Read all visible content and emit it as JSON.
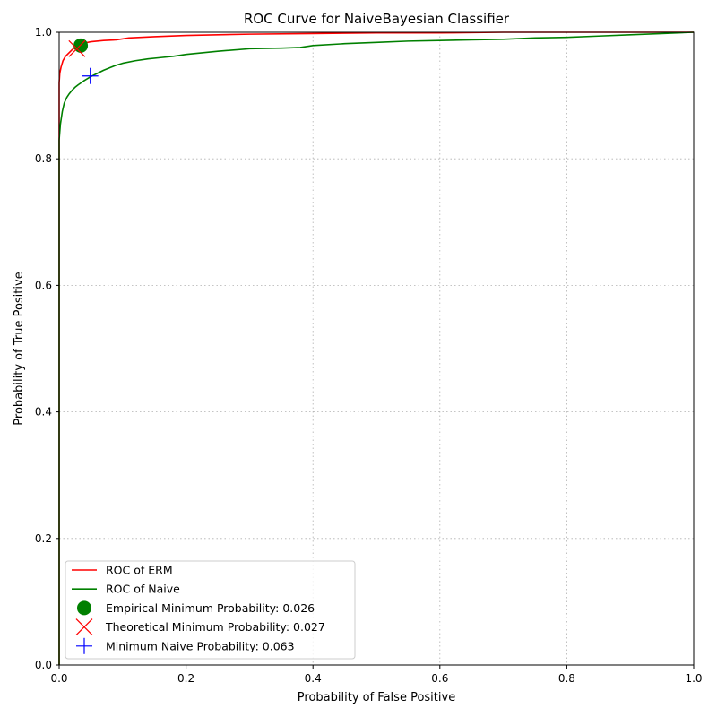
{
  "chart_data": {
    "type": "line",
    "title": "ROC Curve for NaiveBayesian Classifier",
    "xlabel": "Probability of False Positive",
    "ylabel": "Probability of True Positive",
    "xlim": [
      0,
      1
    ],
    "ylim": [
      0,
      1
    ],
    "x_ticks": [
      "0.0",
      "0.2",
      "0.4",
      "0.6",
      "0.8",
      "1.0"
    ],
    "y_ticks": [
      "0.0",
      "0.2",
      "0.4",
      "0.6",
      "0.8",
      "1.0"
    ],
    "grid": true,
    "legend_position": "lower-left",
    "series": [
      {
        "name": "ROC of ERM",
        "color": "#ff0000",
        "marker": "line",
        "x": [
          0,
          0,
          0.001,
          0.003,
          0.006,
          0.01,
          0.015,
          0.02,
          0.025,
          0.03,
          0.04,
          0.05,
          0.07,
          0.09,
          0.11,
          0.15,
          0.2,
          0.3,
          0.4,
          0.5,
          0.6,
          0.7,
          0.8,
          0.9,
          1.0
        ],
        "y": [
          0,
          0.92,
          0.935,
          0.945,
          0.955,
          0.962,
          0.967,
          0.972,
          0.976,
          0.979,
          0.983,
          0.985,
          0.987,
          0.988,
          0.991,
          0.993,
          0.995,
          0.997,
          0.998,
          0.999,
          0.999,
          1.0,
          1.0,
          1.0,
          1.0
        ]
      },
      {
        "name": "ROC of Naive",
        "color": "#008000",
        "marker": "line",
        "x": [
          0,
          0,
          0.002,
          0.005,
          0.008,
          0.012,
          0.016,
          0.02,
          0.025,
          0.03,
          0.04,
          0.05,
          0.06,
          0.07,
          0.08,
          0.09,
          0.1,
          0.12,
          0.14,
          0.16,
          0.18,
          0.2,
          0.25,
          0.3,
          0.35,
          0.38,
          0.4,
          0.45,
          0.5,
          0.55,
          0.6,
          0.65,
          0.7,
          0.75,
          0.8,
          0.85,
          0.9,
          0.95,
          1.0
        ],
        "y": [
          0,
          0.83,
          0.855,
          0.875,
          0.888,
          0.897,
          0.903,
          0.908,
          0.913,
          0.917,
          0.924,
          0.93,
          0.935,
          0.94,
          0.944,
          0.948,
          0.951,
          0.955,
          0.958,
          0.96,
          0.962,
          0.965,
          0.97,
          0.974,
          0.975,
          0.976,
          0.979,
          0.982,
          0.984,
          0.986,
          0.987,
          0.988,
          0.989,
          0.991,
          0.992,
          0.994,
          0.996,
          0.998,
          1.0
        ]
      },
      {
        "name": "Empirical Minimum Probability: 0.026",
        "color": "#008000",
        "marker": "circle",
        "x": [
          0.034
        ],
        "y": [
          0.979
        ]
      },
      {
        "name": "Theoretical Minimum Probability: 0.027",
        "color": "#ff0000",
        "marker": "x",
        "x": [
          0.028
        ],
        "y": [
          0.974
        ]
      },
      {
        "name": "Minimum Naive Probability: 0.063",
        "color": "#0000ff",
        "marker": "plus",
        "x": [
          0.049
        ],
        "y": [
          0.931
        ]
      }
    ]
  }
}
